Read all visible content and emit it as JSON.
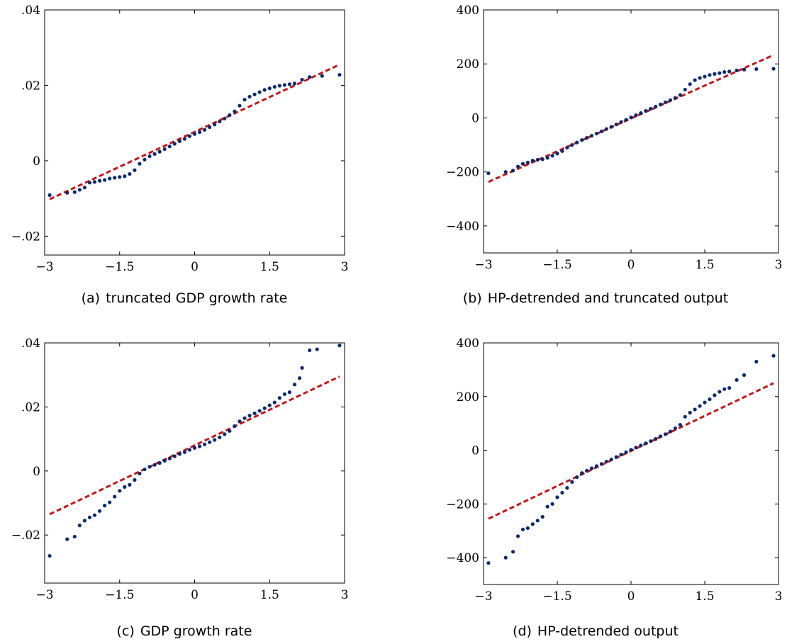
{
  "captions": {
    "a": {
      "tag": "(a)",
      "text": "truncated GDP growth rate"
    },
    "b": {
      "tag": "(b)",
      "text": "HP-detrended and truncated output"
    },
    "c": {
      "tag": "(c)",
      "text": "GDP growth rate"
    },
    "d": {
      "tag": "(d)",
      "text": "HP-detrended output"
    }
  },
  "colors": {
    "points": "#0b2a6e",
    "reference_line": "#c4161c",
    "axis": "#000000"
  },
  "chart_data": [
    {
      "id": "a",
      "type": "scatter",
      "title": "",
      "xlabel": "",
      "ylabel": "",
      "xlim": [
        -3,
        3
      ],
      "ylim": [
        -0.025,
        0.04
      ],
      "xticks": [
        -3,
        -1.5,
        0,
        1.5,
        3
      ],
      "xtick_labels": [
        "−3",
        "−1.5",
        "0",
        "1.5",
        "3"
      ],
      "yticks": [
        -0.02,
        0,
        0.02,
        0.04
      ],
      "ytick_labels": [
        "−.02",
        "0",
        ".02",
        ".04"
      ],
      "grid": false,
      "reference_line": {
        "x": [
          -2.9,
          2.9
        ],
        "y": [
          -0.0102,
          0.0255
        ]
      },
      "points": [
        [
          -2.9,
          -0.0091
        ],
        [
          -2.55,
          -0.0085
        ],
        [
          -2.4,
          -0.0083
        ],
        [
          -2.3,
          -0.0077
        ],
        [
          -2.2,
          -0.0071
        ],
        [
          -2.1,
          -0.0058
        ],
        [
          -2.0,
          -0.0056
        ],
        [
          -1.9,
          -0.0053
        ],
        [
          -1.8,
          -0.0051
        ],
        [
          -1.7,
          -0.0047
        ],
        [
          -1.6,
          -0.0045
        ],
        [
          -1.5,
          -0.0043
        ],
        [
          -1.4,
          -0.0041
        ],
        [
          -1.3,
          -0.0035
        ],
        [
          -1.2,
          -0.0025
        ],
        [
          -1.1,
          -0.0008
        ],
        [
          -1.0,
          0.0003
        ],
        [
          -0.9,
          0.0012
        ],
        [
          -0.8,
          0.0018
        ],
        [
          -0.7,
          0.0024
        ],
        [
          -0.6,
          0.0031
        ],
        [
          -0.5,
          0.0038
        ],
        [
          -0.4,
          0.0045
        ],
        [
          -0.3,
          0.0052
        ],
        [
          -0.2,
          0.0058
        ],
        [
          -0.1,
          0.0065
        ],
        [
          0.0,
          0.0071
        ],
        [
          0.1,
          0.0076
        ],
        [
          0.2,
          0.0082
        ],
        [
          0.3,
          0.0089
        ],
        [
          0.4,
          0.0096
        ],
        [
          0.5,
          0.0104
        ],
        [
          0.6,
          0.0112
        ],
        [
          0.7,
          0.0121
        ],
        [
          0.8,
          0.0131
        ],
        [
          0.9,
          0.0146
        ],
        [
          1.0,
          0.0162
        ],
        [
          1.1,
          0.017
        ],
        [
          1.2,
          0.0176
        ],
        [
          1.3,
          0.0182
        ],
        [
          1.4,
          0.0188
        ],
        [
          1.5,
          0.0192
        ],
        [
          1.6,
          0.0196
        ],
        [
          1.7,
          0.0199
        ],
        [
          1.8,
          0.0201
        ],
        [
          1.9,
          0.0203
        ],
        [
          2.0,
          0.0205
        ],
        [
          2.15,
          0.0215
        ],
        [
          2.3,
          0.0222
        ],
        [
          2.55,
          0.0225
        ],
        [
          2.9,
          0.0228
        ]
      ]
    },
    {
      "id": "b",
      "type": "scatter",
      "title": "",
      "xlabel": "",
      "ylabel": "",
      "xlim": [
        -3,
        3
      ],
      "ylim": [
        -500,
        400
      ],
      "xticks": [
        -3,
        -1.5,
        0,
        1.5,
        3
      ],
      "xtick_labels": [
        "−3",
        "−1.5",
        "0",
        "1.5",
        "3"
      ],
      "yticks": [
        -400,
        -200,
        0,
        200,
        400
      ],
      "ytick_labels": [
        "−400",
        "−200",
        "0",
        "200",
        "400"
      ],
      "grid": false,
      "reference_line": {
        "x": [
          -2.9,
          2.9
        ],
        "y": [
          -237,
          233
        ]
      },
      "points": [
        [
          -2.9,
          -205
        ],
        [
          -2.55,
          -200
        ],
        [
          -2.4,
          -195
        ],
        [
          -2.3,
          -180
        ],
        [
          -2.2,
          -170
        ],
        [
          -2.1,
          -165
        ],
        [
          -2.0,
          -158
        ],
        [
          -1.9,
          -155
        ],
        [
          -1.8,
          -153
        ],
        [
          -1.7,
          -148
        ],
        [
          -1.6,
          -140
        ],
        [
          -1.5,
          -132
        ],
        [
          -1.4,
          -123
        ],
        [
          -1.3,
          -110
        ],
        [
          -1.2,
          -100
        ],
        [
          -1.1,
          -91
        ],
        [
          -1.0,
          -82
        ],
        [
          -0.9,
          -74
        ],
        [
          -0.8,
          -66
        ],
        [
          -0.7,
          -58
        ],
        [
          -0.6,
          -50
        ],
        [
          -0.5,
          -41
        ],
        [
          -0.4,
          -33
        ],
        [
          -0.3,
          -24
        ],
        [
          -0.2,
          -15
        ],
        [
          -0.1,
          -7
        ],
        [
          0.0,
          2
        ],
        [
          0.1,
          10
        ],
        [
          0.2,
          18
        ],
        [
          0.3,
          26
        ],
        [
          0.4,
          34
        ],
        [
          0.5,
          42
        ],
        [
          0.6,
          50
        ],
        [
          0.7,
          58
        ],
        [
          0.8,
          66
        ],
        [
          0.9,
          74
        ],
        [
          1.0,
          85
        ],
        [
          1.1,
          105
        ],
        [
          1.2,
          125
        ],
        [
          1.3,
          140
        ],
        [
          1.4,
          148
        ],
        [
          1.5,
          153
        ],
        [
          1.6,
          159
        ],
        [
          1.7,
          163
        ],
        [
          1.8,
          166
        ],
        [
          1.9,
          170
        ],
        [
          2.0,
          172
        ],
        [
          2.15,
          176
        ],
        [
          2.3,
          179
        ],
        [
          2.55,
          181
        ],
        [
          2.9,
          182
        ]
      ]
    },
    {
      "id": "c",
      "type": "scatter",
      "title": "",
      "xlabel": "",
      "ylabel": "",
      "xlim": [
        -3,
        3
      ],
      "ylim": [
        -0.035,
        0.04
      ],
      "xticks": [
        -3,
        -1.5,
        0,
        1.5,
        3
      ],
      "xtick_labels": [
        "−3",
        "−1.5",
        "0",
        "1.5",
        "3"
      ],
      "yticks": [
        -0.02,
        0,
        0.02,
        0.04
      ],
      "ytick_labels": [
        "−.02",
        "0",
        ".02",
        ".04"
      ],
      "grid": false,
      "reference_line": {
        "x": [
          -2.9,
          2.9
        ],
        "y": [
          -0.0135,
          0.0295
        ]
      },
      "points": [
        [
          -2.9,
          -0.0265
        ],
        [
          -2.55,
          -0.0213
        ],
        [
          -2.4,
          -0.0205
        ],
        [
          -2.3,
          -0.017
        ],
        [
          -2.2,
          -0.0155
        ],
        [
          -2.1,
          -0.0145
        ],
        [
          -2.0,
          -0.0138
        ],
        [
          -1.9,
          -0.0125
        ],
        [
          -1.8,
          -0.0108
        ],
        [
          -1.7,
          -0.0098
        ],
        [
          -1.6,
          -0.008
        ],
        [
          -1.5,
          -0.0062
        ],
        [
          -1.4,
          -0.005
        ],
        [
          -1.3,
          -0.0043
        ],
        [
          -1.2,
          -0.0028
        ],
        [
          -1.1,
          -0.0008
        ],
        [
          -1.0,
          0.0005
        ],
        [
          -0.9,
          0.0013
        ],
        [
          -0.8,
          0.0019
        ],
        [
          -0.7,
          0.0025
        ],
        [
          -0.6,
          0.0032
        ],
        [
          -0.5,
          0.0039
        ],
        [
          -0.4,
          0.0046
        ],
        [
          -0.3,
          0.0053
        ],
        [
          -0.2,
          0.0059
        ],
        [
          -0.1,
          0.0066
        ],
        [
          0.0,
          0.0072
        ],
        [
          0.1,
          0.0077
        ],
        [
          0.2,
          0.0083
        ],
        [
          0.3,
          0.009
        ],
        [
          0.4,
          0.0097
        ],
        [
          0.5,
          0.0105
        ],
        [
          0.6,
          0.0115
        ],
        [
          0.7,
          0.0125
        ],
        [
          0.8,
          0.014
        ],
        [
          0.9,
          0.0155
        ],
        [
          1.0,
          0.0165
        ],
        [
          1.1,
          0.0173
        ],
        [
          1.2,
          0.018
        ],
        [
          1.3,
          0.0188
        ],
        [
          1.4,
          0.0196
        ],
        [
          1.5,
          0.0205
        ],
        [
          1.6,
          0.0214
        ],
        [
          1.7,
          0.0228
        ],
        [
          1.8,
          0.024
        ],
        [
          1.9,
          0.0246
        ],
        [
          2.0,
          0.027
        ],
        [
          2.1,
          0.029
        ],
        [
          2.15,
          0.0322
        ],
        [
          2.3,
          0.0377
        ],
        [
          2.45,
          0.038
        ],
        [
          2.9,
          0.0392
        ]
      ]
    },
    {
      "id": "d",
      "type": "scatter",
      "title": "",
      "xlabel": "",
      "ylabel": "",
      "xlim": [
        -3,
        3
      ],
      "ylim": [
        -500,
        400
      ],
      "xticks": [
        -3,
        -1.5,
        0,
        1.5,
        3
      ],
      "xtick_labels": [
        "−3",
        "−1.5",
        "0",
        "1.5",
        "3"
      ],
      "yticks": [
        -400,
        -200,
        0,
        200,
        400
      ],
      "ytick_labels": [
        "−400",
        "−200",
        "0",
        "200",
        "400"
      ],
      "grid": false,
      "reference_line": {
        "x": [
          -2.9,
          2.9
        ],
        "y": [
          -255,
          250
        ]
      },
      "points": [
        [
          -2.9,
          -420
        ],
        [
          -2.55,
          -400
        ],
        [
          -2.4,
          -378
        ],
        [
          -2.3,
          -320
        ],
        [
          -2.2,
          -295
        ],
        [
          -2.1,
          -290
        ],
        [
          -2.0,
          -275
        ],
        [
          -1.9,
          -262
        ],
        [
          -1.8,
          -248
        ],
        [
          -1.7,
          -210
        ],
        [
          -1.6,
          -200
        ],
        [
          -1.5,
          -175
        ],
        [
          -1.4,
          -158
        ],
        [
          -1.3,
          -140
        ],
        [
          -1.2,
          -118
        ],
        [
          -1.1,
          -100
        ],
        [
          -1.0,
          -85
        ],
        [
          -0.9,
          -76
        ],
        [
          -0.8,
          -67
        ],
        [
          -0.7,
          -59
        ],
        [
          -0.6,
          -51
        ],
        [
          -0.5,
          -42
        ],
        [
          -0.4,
          -34
        ],
        [
          -0.3,
          -25
        ],
        [
          -0.2,
          -16
        ],
        [
          -0.1,
          -7
        ],
        [
          0.0,
          2
        ],
        [
          0.1,
          10
        ],
        [
          0.2,
          18
        ],
        [
          0.3,
          26
        ],
        [
          0.4,
          34
        ],
        [
          0.5,
          42
        ],
        [
          0.6,
          52
        ],
        [
          0.7,
          60
        ],
        [
          0.8,
          70
        ],
        [
          0.9,
          82
        ],
        [
          1.0,
          95
        ],
        [
          1.1,
          125
        ],
        [
          1.2,
          140
        ],
        [
          1.3,
          152
        ],
        [
          1.4,
          165
        ],
        [
          1.5,
          178
        ],
        [
          1.6,
          190
        ],
        [
          1.7,
          205
        ],
        [
          1.8,
          218
        ],
        [
          1.9,
          228
        ],
        [
          2.0,
          232
        ],
        [
          2.15,
          262
        ],
        [
          2.3,
          280
        ],
        [
          2.55,
          330
        ],
        [
          2.9,
          352
        ]
      ]
    }
  ]
}
